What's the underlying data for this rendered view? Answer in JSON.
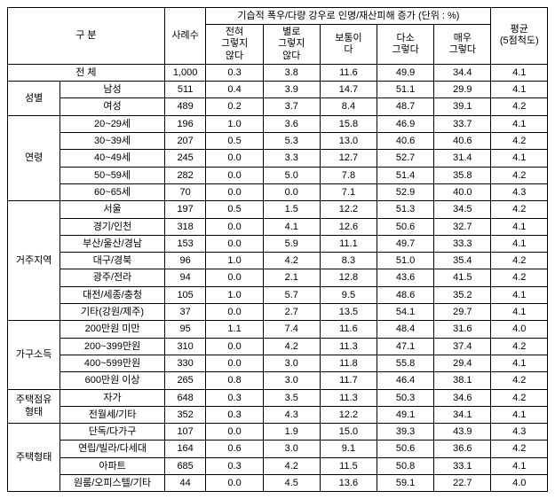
{
  "header": {
    "group_col": "구   분",
    "count_col": "사례수",
    "scale_header": "기습적 폭우/다량 강우로 인명/재산피해 증가 (단위 : %)",
    "scale_cols": [
      "전혀\n그렇지\n않다",
      "별로\n그렇지\n않다",
      "보통이\n다",
      "다소\n그렇다",
      "매우\n그렇다"
    ],
    "avg_col": "평균\n(5점척도)"
  },
  "total_row": {
    "label": "전   체",
    "count": "1,000",
    "v": [
      "0.3",
      "3.8",
      "11.6",
      "49.9",
      "34.4"
    ],
    "avg": "4.1"
  },
  "groups": [
    {
      "name": "성별",
      "rows": [
        {
          "label": "남성",
          "count": "511",
          "v": [
            "0.4",
            "3.9",
            "14.7",
            "51.1",
            "29.9"
          ],
          "avg": "4.1"
        },
        {
          "label": "여성",
          "count": "489",
          "v": [
            "0.2",
            "3.7",
            "8.4",
            "48.7",
            "39.1"
          ],
          "avg": "4.2"
        }
      ]
    },
    {
      "name": "연령",
      "rows": [
        {
          "label": "20~29세",
          "count": "196",
          "v": [
            "1.0",
            "3.6",
            "15.8",
            "46.9",
            "33.7"
          ],
          "avg": "4.1"
        },
        {
          "label": "30~39세",
          "count": "207",
          "v": [
            "0.5",
            "5.3",
            "13.0",
            "40.6",
            "40.6"
          ],
          "avg": "4.2"
        },
        {
          "label": "40~49세",
          "count": "245",
          "v": [
            "0.0",
            "3.3",
            "12.7",
            "52.7",
            "31.4"
          ],
          "avg": "4.1"
        },
        {
          "label": "50~59세",
          "count": "282",
          "v": [
            "0.0",
            "5.0",
            "7.8",
            "51.4",
            "35.8"
          ],
          "avg": "4.2"
        },
        {
          "label": "60~65세",
          "count": "70",
          "v": [
            "0.0",
            "0.0",
            "7.1",
            "52.9",
            "40.0"
          ],
          "avg": "4.3"
        }
      ]
    },
    {
      "name": "거주지역",
      "rows": [
        {
          "label": "서울",
          "count": "197",
          "v": [
            "0.5",
            "1.5",
            "12.2",
            "51.3",
            "34.5"
          ],
          "avg": "4.2"
        },
        {
          "label": "경기/인천",
          "count": "318",
          "v": [
            "0.0",
            "4.1",
            "12.6",
            "50.6",
            "32.7"
          ],
          "avg": "4.1"
        },
        {
          "label": "부산/울산/경남",
          "count": "153",
          "v": [
            "0.0",
            "5.9",
            "11.1",
            "49.7",
            "33.3"
          ],
          "avg": "4.1"
        },
        {
          "label": "대구/경북",
          "count": "96",
          "v": [
            "1.0",
            "4.2",
            "8.3",
            "51.0",
            "35.4"
          ],
          "avg": "4.2"
        },
        {
          "label": "광주/전라",
          "count": "94",
          "v": [
            "0.0",
            "2.1",
            "12.8",
            "43.6",
            "41.5"
          ],
          "avg": "4.2"
        },
        {
          "label": "대전/세종/충청",
          "count": "105",
          "v": [
            "1.0",
            "5.7",
            "9.5",
            "48.6",
            "35.2"
          ],
          "avg": "4.1"
        },
        {
          "label": "기타(강원/제주)",
          "count": "37",
          "v": [
            "0.0",
            "2.7",
            "13.5",
            "54.1",
            "29.7"
          ],
          "avg": "4.1"
        }
      ]
    },
    {
      "name": "가구소득",
      "rows": [
        {
          "label": "200만원 미만",
          "count": "95",
          "v": [
            "1.1",
            "7.4",
            "11.6",
            "48.4",
            "31.6"
          ],
          "avg": "4.0"
        },
        {
          "label": "200~399만원",
          "count": "310",
          "v": [
            "0.0",
            "4.2",
            "11.3",
            "47.1",
            "37.4"
          ],
          "avg": "4.2"
        },
        {
          "label": "400~599만원",
          "count": "330",
          "v": [
            "0.0",
            "3.0",
            "11.8",
            "55.8",
            "29.4"
          ],
          "avg": "4.1"
        },
        {
          "label": "600만원 이상",
          "count": "265",
          "v": [
            "0.8",
            "3.0",
            "11.7",
            "46.4",
            "38.1"
          ],
          "avg": "4.2"
        }
      ]
    },
    {
      "name": "주택점유\n형태",
      "rows": [
        {
          "label": "자가",
          "count": "648",
          "v": [
            "0.3",
            "3.5",
            "11.3",
            "50.3",
            "34.6"
          ],
          "avg": "4.2"
        },
        {
          "label": "전월세/기타",
          "count": "352",
          "v": [
            "0.3",
            "4.3",
            "12.2",
            "49.1",
            "34.1"
          ],
          "avg": "4.1"
        }
      ]
    },
    {
      "name": "주택형태",
      "rows": [
        {
          "label": "단독/다가구",
          "count": "107",
          "v": [
            "0.0",
            "1.9",
            "15.0",
            "39.3",
            "43.9"
          ],
          "avg": "4.3"
        },
        {
          "label": "연립/빌라/다세대",
          "count": "164",
          "v": [
            "0.6",
            "3.0",
            "9.1",
            "50.6",
            "36.6"
          ],
          "avg": "4.2"
        },
        {
          "label": "아파트",
          "count": "685",
          "v": [
            "0.3",
            "4.2",
            "11.5",
            "50.8",
            "33.1"
          ],
          "avg": "4.1"
        },
        {
          "label": "원룸/오피스텔/기타",
          "count": "44",
          "v": [
            "0.0",
            "4.5",
            "13.6",
            "59.1",
            "22.7"
          ],
          "avg": "4.0"
        }
      ]
    }
  ]
}
